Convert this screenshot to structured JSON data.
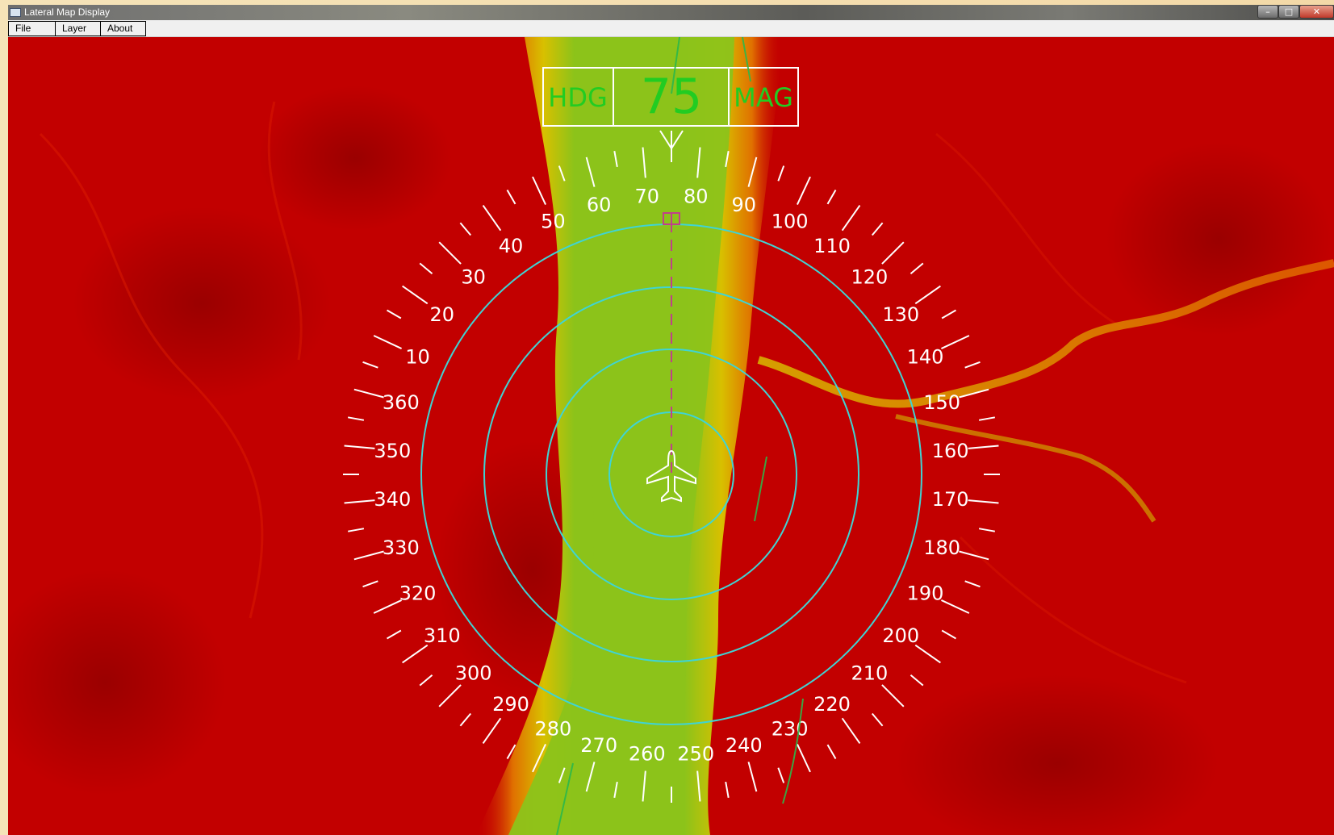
{
  "window": {
    "title": "Lateral Map Display",
    "controls": {
      "minimize": "–",
      "maximize": "□",
      "close": "✕"
    }
  },
  "menu": {
    "file": "File",
    "layer": "Layer",
    "about": "About"
  },
  "heading_box": {
    "left_label": "HDG",
    "value": "75",
    "right_label": "MAG"
  },
  "compass": {
    "current_heading_deg": 75,
    "labels": [
      "10",
      "20",
      "30",
      "40",
      "50",
      "60",
      "70",
      "80",
      "90",
      "100",
      "110",
      "120",
      "130",
      "140",
      "150",
      "160",
      "170",
      "180",
      "190",
      "200",
      "210",
      "220",
      "230",
      "240",
      "250",
      "260",
      "270",
      "280",
      "290",
      "300",
      "310",
      "320",
      "330",
      "340",
      "350",
      "360"
    ],
    "range_rings": 4
  },
  "colors": {
    "terrain_high": "#c40000",
    "terrain_low": "#8cc31a",
    "terrain_mid": "#e0b800",
    "compass": "#ffffff",
    "rings": "#3fd4d4",
    "heading_text": "#22cc22",
    "track_line": "#c0408a"
  },
  "icons": {
    "aircraft": "aircraft-icon",
    "waypoint": "waypoint-marker-icon",
    "heading_pointer": "heading-pointer-icon"
  }
}
